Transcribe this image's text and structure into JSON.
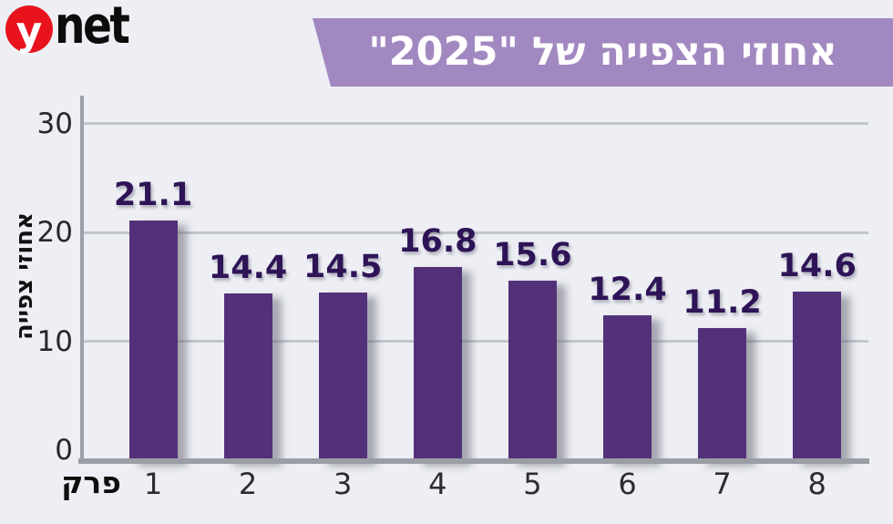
{
  "page": {
    "background": "#edeff4"
  },
  "logo": {
    "y": "y",
    "net": "net",
    "circle_color": "#e8131d",
    "net_color": "#0c0c0c"
  },
  "banner": {
    "text": "אחוזי הצפייה של \"2025\"",
    "bg_color": "#a288c0",
    "text_color": "#ffffff"
  },
  "chart_data": {
    "type": "bar",
    "categories": [
      "1",
      "2",
      "3",
      "4",
      "5",
      "6",
      "7",
      "8"
    ],
    "values": [
      21.1,
      14.4,
      14.5,
      16.8,
      15.6,
      12.4,
      11.2,
      14.6
    ],
    "title": "אחוזי הצפייה של \"2025\"",
    "xlabel": "פרק",
    "ylabel": "אחוזי צפייה",
    "ylim": [
      0,
      32
    ],
    "yticks": [
      30,
      20,
      10,
      0
    ],
    "grid": true,
    "legend": "none",
    "bar_color": "#533179",
    "value_label_color": "#2e1457",
    "gridline_color": "#c2c5cc",
    "axis_color": "#9b9ea5"
  }
}
